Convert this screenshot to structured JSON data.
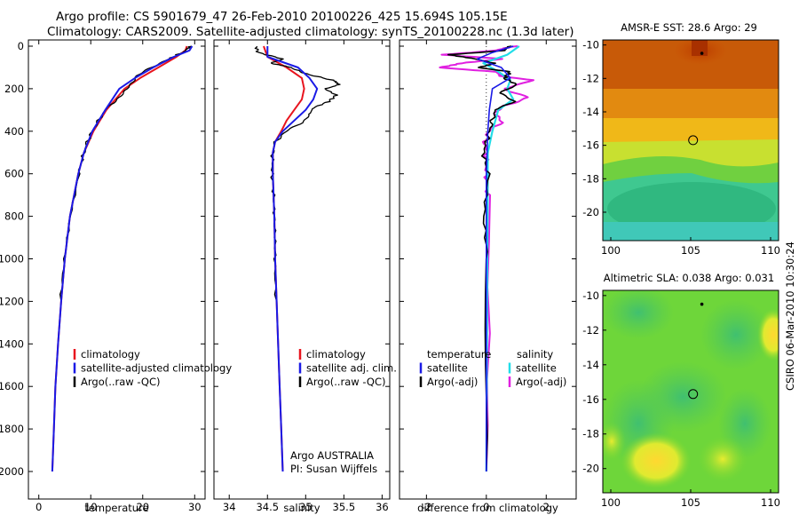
{
  "header": {
    "line1": "Argo profile: CS 5901679_47 26-Feb-2010 20100226_425 15.694S 105.15E",
    "line2": "Climatology: CARS2009. Satellite-adjusted climatology: synTS_20100228.nc (1.3d later)"
  },
  "stamp": "CSIRO 06-Mar-2010 10:30:24",
  "depth_ticks": [
    "0",
    "200",
    "400",
    "600",
    "800",
    "1000",
    "1200",
    "1400",
    "1600",
    "1800",
    "2000"
  ],
  "colors": {
    "climatology": "#e8141e",
    "satellite": "#1a1ae6",
    "argo": "#000000",
    "sal_satellite": "#22dde8",
    "sal_argo": "#e020e0"
  },
  "chart_data": [
    {
      "type": "line",
      "panel": "temperature",
      "xlabel": "temperature",
      "xlim": [
        -2,
        32
      ],
      "ylim": [
        2000,
        0
      ],
      "xticks": [
        "0",
        "10",
        "20",
        "30"
      ],
      "legend": [
        "climatology",
        "satellite-adjusted climatology",
        "Argo(..raw -QC)"
      ],
      "series": [
        {
          "name": "climatology",
          "depth": [
            0,
            20,
            50,
            100,
            150,
            200,
            300,
            400,
            500,
            600,
            800,
            1000,
            1200,
            1400,
            1600,
            1800,
            2000
          ],
          "values": [
            28.5,
            28.2,
            26.5,
            23,
            19.5,
            16.5,
            13,
            10.5,
            8.7,
            7.6,
            6.0,
            5.0,
            4.3,
            3.7,
            3.2,
            2.9,
            2.6
          ]
        },
        {
          "name": "satellite-adjusted climatology",
          "depth": [
            0,
            20,
            50,
            100,
            150,
            200,
            300,
            400,
            500,
            600,
            800,
            1000,
            1200,
            1400,
            1600,
            1800,
            2000
          ],
          "values": [
            29.5,
            29.0,
            26.0,
            22,
            18.5,
            15.5,
            12.8,
            10.3,
            8.7,
            7.6,
            6.0,
            5.0,
            4.3,
            3.7,
            3.2,
            2.9,
            2.6
          ]
        },
        {
          "name": "Argo(..raw -QC)",
          "depth": [
            0,
            10,
            30,
            60,
            100,
            140,
            180,
            220,
            260,
            300,
            350,
            400,
            450,
            500,
            600,
            800,
            1000,
            1200,
            1400,
            1600,
            1800,
            2000
          ],
          "values": [
            29.2,
            28.8,
            27.5,
            25,
            21.5,
            19,
            17.5,
            16.5,
            14.5,
            12.8,
            11.5,
            10.3,
            9.3,
            8.7,
            7.6,
            6.0,
            5.0,
            4.3,
            3.7,
            3.2,
            2.9,
            2.6
          ]
        }
      ]
    },
    {
      "type": "line",
      "panel": "salinity",
      "xlabel": "salinity",
      "xlim": [
        33.8,
        36.1
      ],
      "ylim": [
        2000,
        0
      ],
      "xticks": [
        "34",
        "34.5",
        "35",
        "35.5",
        "36"
      ],
      "legend": [
        "climatology",
        "satellite adj. clim.",
        "Argo(..raw -QC)"
      ],
      "annotation": [
        "Argo AUSTRALIA",
        "PI: Susan Wijffels"
      ],
      "series": [
        {
          "name": "climatology",
          "depth": [
            0,
            50,
            100,
            150,
            200,
            250,
            300,
            350,
            400,
            450,
            500,
            600,
            800,
            1000,
            1200,
            1400,
            1600,
            1800,
            2000
          ],
          "values": [
            34.45,
            34.5,
            34.75,
            34.95,
            34.98,
            34.95,
            34.85,
            34.75,
            34.68,
            34.6,
            34.57,
            34.57,
            34.59,
            34.6,
            34.62,
            34.64,
            34.66,
            34.68,
            34.7
          ]
        },
        {
          "name": "satellite adj. clim.",
          "depth": [
            0,
            50,
            100,
            150,
            200,
            250,
            300,
            350,
            400,
            450,
            500,
            600,
            800,
            1000,
            1200,
            1400,
            1600,
            1800,
            2000
          ],
          "values": [
            34.5,
            34.5,
            34.9,
            35.05,
            35.15,
            35.1,
            35.0,
            34.85,
            34.7,
            34.6,
            34.57,
            34.57,
            34.59,
            34.6,
            34.62,
            34.64,
            34.66,
            34.68,
            34.7
          ]
        },
        {
          "name": "Argo(..raw -QC)",
          "depth": [
            0,
            30,
            60,
            80,
            100,
            130,
            160,
            180,
            200,
            230,
            260,
            290,
            320,
            360,
            400,
            450,
            500,
            600,
            700,
            800,
            900,
            1000,
            1200,
            1400,
            1600,
            1800,
            2000
          ],
          "values": [
            34.35,
            34.38,
            34.7,
            34.55,
            34.8,
            35.0,
            35.35,
            35.45,
            35.25,
            35.4,
            35.3,
            35.1,
            35.05,
            34.95,
            34.75,
            34.6,
            34.57,
            34.56,
            34.58,
            34.59,
            34.6,
            34.6,
            34.62,
            34.64,
            34.66,
            34.68,
            34.7
          ]
        }
      ]
    },
    {
      "type": "line",
      "panel": "difference",
      "xlabel": "difference from climatology",
      "xlim": [
        -2.9,
        3.0
      ],
      "ylim": [
        2000,
        0
      ],
      "xticks": [
        "-2",
        "0",
        "2"
      ],
      "legend_temperature": [
        "temperature",
        "satellite",
        "Argo(-adj)"
      ],
      "legend_salinity": [
        "salinity",
        "satellite",
        "Argo(-adj)"
      ],
      "series": [
        {
          "name": "temperature satellite",
          "depth": [
            0,
            30,
            60,
            100,
            150,
            200,
            300,
            400,
            600,
            2000
          ],
          "values": [
            0.9,
            0.2,
            -0.3,
            0.5,
            0.8,
            0.2,
            0.1,
            0.05,
            0,
            0
          ]
        },
        {
          "name": "temperature Argo(-adj)",
          "depth": [
            0,
            20,
            40,
            60,
            80,
            100,
            120,
            150,
            180,
            220,
            260,
            300,
            350,
            400,
            500,
            600,
            800,
            1000,
            2000
          ],
          "values": [
            0.8,
            0.6,
            -1.2,
            -0.4,
            0.3,
            -0.3,
            0.8,
            0.6,
            1.0,
            0.5,
            0.9,
            0.3,
            0.2,
            0.1,
            -0.1,
            0.05,
            -0.1,
            0.05,
            0
          ]
        },
        {
          "name": "salinity satellite",
          "depth": [
            0,
            40,
            80,
            120,
            160,
            200,
            250,
            300,
            400,
            500,
            2000
          ],
          "values": [
            1.1,
            0.7,
            -0.1,
            0.4,
            0.8,
            0.7,
            0.9,
            0.4,
            0.2,
            0.05,
            0
          ]
        },
        {
          "name": "salinity Argo(-adj)",
          "depth": [
            0,
            20,
            40,
            60,
            80,
            100,
            120,
            140,
            160,
            200,
            240,
            280,
            320,
            360,
            400,
            450,
            500,
            600,
            700,
            2000
          ],
          "values": [
            1.0,
            0.3,
            -1.4,
            0.5,
            -0.8,
            -1.6,
            0.3,
            0.5,
            1.5,
            0.6,
            1.4,
            0.6,
            0.3,
            0.5,
            0.1,
            -0.05,
            0,
            0,
            0.05,
            0
          ]
        }
      ]
    },
    {
      "type": "heatmap",
      "panel": "sst_map",
      "title": "AMSR-E SST: 28.6 Argo: 29",
      "xlim": [
        99.5,
        110.5
      ],
      "ylim": [
        -21.7,
        -9.7
      ],
      "xticks": [
        "100",
        "105",
        "110"
      ],
      "yticks": [
        "-10",
        "-12",
        "-14",
        "-16",
        "-18",
        "-20"
      ],
      "float_position": [
        105.15,
        -15.694
      ],
      "satellite_grid_marker": [
        105.7,
        -10.5
      ]
    },
    {
      "type": "heatmap",
      "panel": "sla_map",
      "title": "Altimetric SLA: 0.038 Argo: 0.031",
      "xlim": [
        99.5,
        110.5
      ],
      "ylim": [
        -21.4,
        -9.7
      ],
      "xticks": [
        "100",
        "105",
        "110"
      ],
      "yticks": [
        "-10",
        "-12",
        "-14",
        "-16",
        "-18",
        "-20"
      ],
      "float_position": [
        105.15,
        -15.694
      ],
      "satellite_grid_marker": [
        105.7,
        -10.5
      ]
    }
  ]
}
